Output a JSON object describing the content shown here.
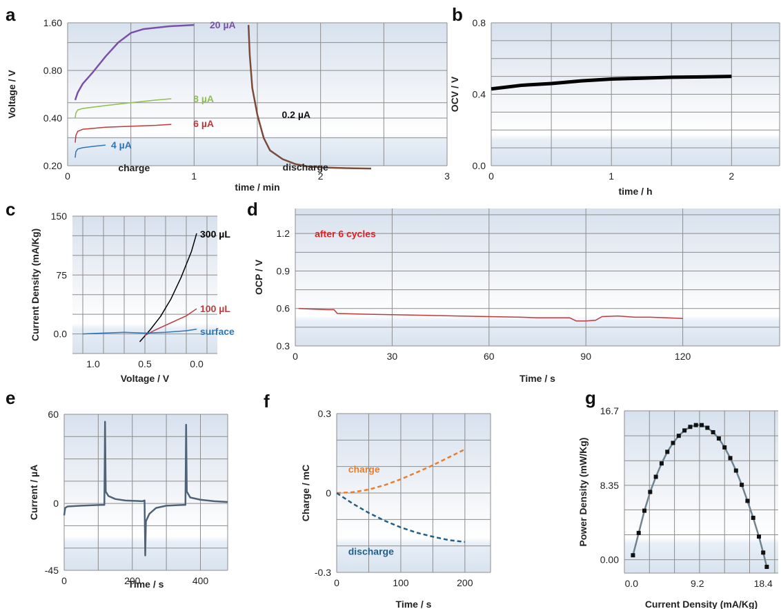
{
  "chart_data": [
    {
      "panel": "a",
      "type": "line",
      "xlabel": "time / min",
      "ylabel": "Voltage / V",
      "xlim": [
        0,
        3
      ],
      "ylim_log": [
        0.2,
        1.6
      ],
      "xticks": [
        "0",
        "1",
        "2",
        "3"
      ],
      "yticks": [
        "0.20",
        "0.40",
        "0.80",
        "1.60"
      ],
      "annotations": [
        {
          "text": "charge",
          "color": "#222222",
          "pos": [
            0.4,
            0.185
          ]
        },
        {
          "text": "discharge",
          "color": "#222222",
          "pos": [
            1.7,
            0.186
          ]
        }
      ],
      "series": [
        {
          "name": "20 µA",
          "color": "#7a4fa8",
          "label_pos": [
            1.08,
            1.55
          ],
          "x": [
            0.06,
            0.08,
            0.12,
            0.2,
            0.3,
            0.4,
            0.5,
            0.6,
            0.8,
            1.0
          ],
          "y": [
            0.52,
            0.58,
            0.66,
            0.78,
            0.98,
            1.2,
            1.38,
            1.46,
            1.52,
            1.55
          ]
        },
        {
          "name": "8 µA",
          "color": "#8fbf4f",
          "label_pos": [
            0.95,
            0.53
          ],
          "x": [
            0.06,
            0.065,
            0.08,
            0.12,
            0.3,
            0.5,
            0.7,
            0.82
          ],
          "y": [
            0.4,
            0.43,
            0.45,
            0.46,
            0.48,
            0.5,
            0.52,
            0.53
          ]
        },
        {
          "name": "6 µA",
          "color": "#c0393b",
          "label_pos": [
            0.95,
            0.37
          ],
          "x": [
            0.06,
            0.065,
            0.08,
            0.12,
            0.3,
            0.5,
            0.7,
            0.82
          ],
          "y": [
            0.28,
            0.31,
            0.33,
            0.34,
            0.35,
            0.355,
            0.36,
            0.365
          ]
        },
        {
          "name": "4 µA",
          "color": "#2e75b6",
          "label_pos": [
            0.3,
            0.27
          ],
          "x": [
            0.06,
            0.065,
            0.08,
            0.12,
            0.2,
            0.3
          ],
          "y": [
            0.225,
            0.245,
            0.255,
            0.26,
            0.265,
            0.27
          ]
        },
        {
          "name": "0.2 µA",
          "color": "#7b4a38",
          "label_pos": [
            1.65,
            0.42
          ],
          "x": [
            1.43,
            1.44,
            1.46,
            1.5,
            1.55,
            1.6,
            1.7,
            1.8,
            1.9,
            2.0,
            2.2,
            2.4
          ],
          "y": [
            1.55,
            1.0,
            0.62,
            0.42,
            0.3,
            0.25,
            0.22,
            0.205,
            0.198,
            0.195,
            0.193,
            0.192
          ]
        }
      ]
    },
    {
      "panel": "b",
      "type": "line",
      "xlabel": "time / h",
      "ylabel": "OCV / V",
      "xlim": [
        0,
        2.4
      ],
      "ylim": [
        0,
        0.8
      ],
      "xticks": [
        "0",
        "1",
        "2"
      ],
      "yticks": [
        "0.0",
        "0.4",
        "0.8"
      ],
      "series": [
        {
          "name": "",
          "color": "#000000",
          "x": [
            0,
            0.25,
            0.5,
            0.75,
            1.0,
            1.25,
            1.5,
            1.75,
            2.0
          ],
          "y": [
            0.43,
            0.45,
            0.46,
            0.475,
            0.485,
            0.49,
            0.495,
            0.497,
            0.5
          ]
        }
      ]
    },
    {
      "panel": "c",
      "type": "line",
      "xlabel": "Voltage / V",
      "ylabel": "Current  Density (mA/Kg)",
      "xlim": [
        1.2,
        -0.2
      ],
      "ylim": [
        -25,
        150
      ],
      "xticks": [
        "1.0",
        "0.5",
        "0.0"
      ],
      "yticks": [
        "0.0",
        "75",
        "150"
      ],
      "series": [
        {
          "name": "300 µL",
          "color": "#000000",
          "label_pos": [
            0.02,
            127
          ],
          "x": [
            0.55,
            0.45,
            0.35,
            0.25,
            0.15,
            0.05,
            0.0
          ],
          "y": [
            -10,
            5,
            22,
            44,
            72,
            105,
            128
          ]
        },
        {
          "name": "100 µL",
          "color": "#c0393b",
          "label_pos": [
            0.02,
            32
          ],
          "x": [
            0.5,
            0.4,
            0.3,
            0.2,
            0.1,
            0.0
          ],
          "y": [
            -2,
            5,
            11,
            17,
            23,
            32
          ]
        },
        {
          "name": "surface",
          "color": "#2e75b6",
          "label_pos": [
            0.02,
            3
          ],
          "x": [
            1.1,
            0.9,
            0.7,
            0.5,
            0.3,
            0.1,
            0.0
          ],
          "y": [
            0,
            1,
            2,
            1,
            2,
            4,
            6
          ]
        }
      ]
    },
    {
      "panel": "d",
      "type": "line",
      "xlabel": "Time / s",
      "ylabel": "OCP / V",
      "xlim": [
        0,
        150
      ],
      "ylim": [
        0.3,
        1.4
      ],
      "xticks": [
        "0",
        "30",
        "60",
        "90",
        "120"
      ],
      "yticks": [
        "0.3",
        "0.6",
        "0.9",
        "1.2"
      ],
      "annotations": [
        {
          "text": "after 6 cycles",
          "color": "#d62728",
          "pos": [
            6,
            1.17
          ]
        }
      ],
      "series": [
        {
          "name": "",
          "color": "#c0393b",
          "x": [
            1,
            5,
            10,
            12,
            13,
            20,
            30,
            40,
            50,
            60,
            70,
            75,
            80,
            85,
            87,
            90,
            93,
            95,
            100,
            105,
            110,
            115,
            120
          ],
          "y": [
            0.6,
            0.595,
            0.59,
            0.59,
            0.56,
            0.555,
            0.55,
            0.545,
            0.54,
            0.535,
            0.53,
            0.525,
            0.525,
            0.525,
            0.5,
            0.5,
            0.505,
            0.535,
            0.54,
            0.53,
            0.53,
            0.525,
            0.52
          ]
        }
      ]
    },
    {
      "panel": "e",
      "type": "line",
      "xlabel": "Time / s",
      "ylabel": "Current / µA",
      "xlim": [
        0,
        480
      ],
      "ylim": [
        -45,
        60
      ],
      "xticks": [
        "0",
        "200",
        "400"
      ],
      "yticks": [
        "-45",
        "0",
        "60"
      ],
      "series": [
        {
          "name": "",
          "color": "#4e6378",
          "x": [
            0,
            3,
            10,
            50,
            110,
            118,
            120,
            122,
            130,
            150,
            180,
            230,
            236,
            238,
            240,
            250,
            270,
            300,
            350,
            356,
            358,
            360,
            370,
            400,
            440,
            480
          ],
          "y": [
            -8,
            -3,
            -2,
            -1.5,
            -1,
            -1,
            55,
            8,
            5,
            3,
            2,
            1.5,
            2,
            -35,
            -12,
            -7,
            -3,
            -1.5,
            -1,
            -1,
            53,
            8,
            4,
            2.5,
            1.5,
            1
          ]
        }
      ]
    },
    {
      "panel": "f",
      "type": "line",
      "xlabel": "Time / s",
      "ylabel": "Charge / mC",
      "xlim": [
        0,
        240
      ],
      "ylim": [
        -0.3,
        0.3
      ],
      "xticks": [
        "0",
        "100",
        "200"
      ],
      "yticks": [
        "-0.3",
        "0",
        "0.3"
      ],
      "series": [
        {
          "name": "charge",
          "color": "#e87d2e",
          "label_pos": [
            18,
            0.09
          ],
          "x": [
            0,
            25,
            50,
            75,
            100,
            125,
            150,
            175,
            200
          ],
          "y": [
            0,
            0.003,
            0.013,
            0.03,
            0.052,
            0.078,
            0.105,
            0.135,
            0.165
          ]
        },
        {
          "name": "discharge",
          "color": "#1f5f88",
          "label_pos": [
            18,
            -0.22
          ],
          "x": [
            0,
            25,
            50,
            75,
            100,
            125,
            150,
            175,
            200
          ],
          "y": [
            0,
            -0.04,
            -0.075,
            -0.105,
            -0.13,
            -0.15,
            -0.165,
            -0.178,
            -0.185
          ]
        }
      ]
    },
    {
      "panel": "g",
      "type": "scatter",
      "xlabel": "Current  Density (mA/Kg)",
      "ylabel": "Power Density (mW/Kg)",
      "xlim": [
        -1.0,
        20.5
      ],
      "ylim": [
        -1.5,
        16.7
      ],
      "xticks": [
        "0.0",
        "9.2",
        "18.4"
      ],
      "yticks": [
        "0.00",
        "8.35",
        "16.7"
      ],
      "series": [
        {
          "name": "",
          "color": "#111111",
          "x": [
            0.2,
            1.0,
            1.8,
            2.6,
            3.4,
            4.2,
            5.0,
            5.8,
            6.6,
            7.4,
            8.2,
            9.0,
            9.8,
            10.6,
            11.4,
            12.2,
            13.0,
            13.8,
            14.6,
            15.4,
            16.2,
            17.0,
            17.8,
            18.4,
            18.9
          ],
          "y": [
            0.5,
            3.0,
            5.5,
            7.6,
            9.3,
            10.8,
            12.1,
            13.1,
            13.9,
            14.5,
            14.9,
            15.1,
            15.1,
            14.8,
            14.3,
            13.6,
            12.6,
            11.4,
            10.0,
            8.4,
            6.6,
            4.7,
            2.6,
            0.8,
            -0.8
          ]
        }
      ]
    }
  ]
}
